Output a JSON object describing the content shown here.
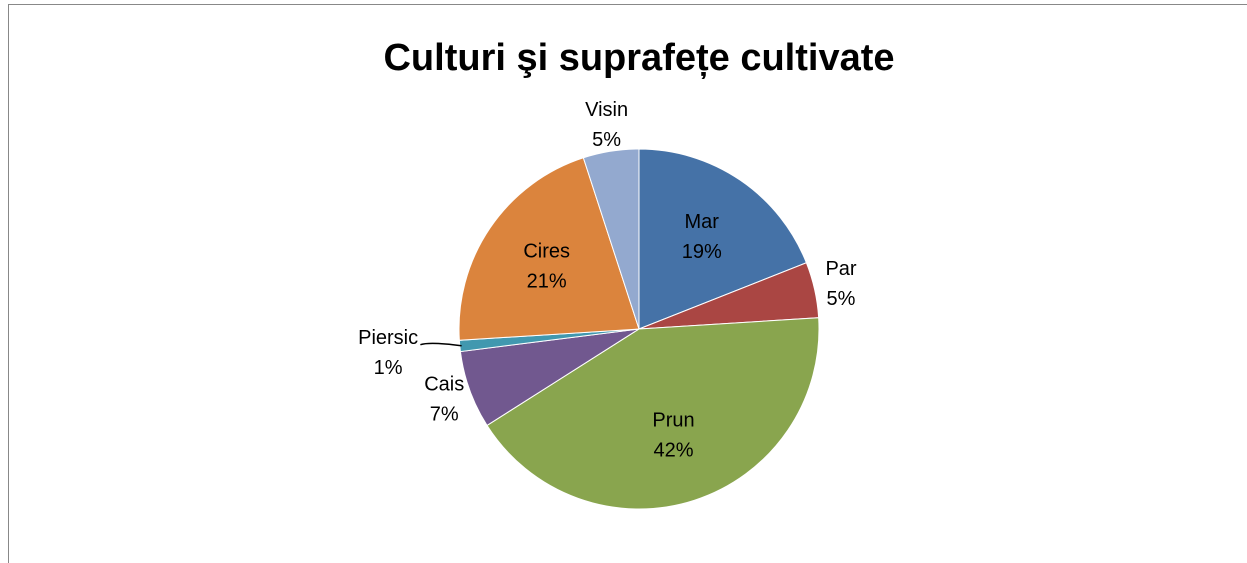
{
  "chart_data": {
    "type": "pie",
    "title": "Culturi şi suprafețe cultivate",
    "categories": [
      "Mar",
      "Par",
      "Prun",
      "Cais",
      "Piersic",
      "Cires",
      "Visin"
    ],
    "values": [
      19,
      5,
      42,
      7,
      1,
      21,
      5
    ],
    "value_labels": [
      "19%",
      "5%",
      "42%",
      "7%",
      "1%",
      "21%",
      "5%"
    ],
    "colors": [
      "#4572a7",
      "#aa4643",
      "#89a54e",
      "#71588f",
      "#4198af",
      "#db843d",
      "#93a9cf"
    ]
  }
}
